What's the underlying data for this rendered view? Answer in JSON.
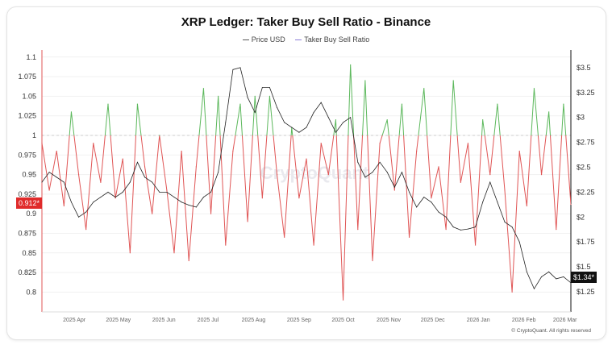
{
  "chart_data": {
    "type": "line",
    "title": "XRP Ledger: Taker Buy Sell Ratio - Binance",
    "legend": [
      "Price USD",
      "Taker Buy Sell Ratio"
    ],
    "legend_position": "top",
    "x": [
      "2025-03-10",
      "2025-03-15",
      "2025-03-20",
      "2025-03-25",
      "2025-03-30",
      "2025-04-04",
      "2025-04-09",
      "2025-04-14",
      "2025-04-19",
      "2025-04-24",
      "2025-04-29",
      "2025-05-04",
      "2025-05-09",
      "2025-05-14",
      "2025-05-19",
      "2025-05-24",
      "2025-05-29",
      "2025-06-03",
      "2025-06-08",
      "2025-06-13",
      "2025-06-18",
      "2025-06-23",
      "2025-06-28",
      "2025-07-03",
      "2025-07-08",
      "2025-07-13",
      "2025-07-18",
      "2025-07-23",
      "2025-07-28",
      "2025-08-02",
      "2025-08-07",
      "2025-08-12",
      "2025-08-17",
      "2025-08-22",
      "2025-08-27",
      "2025-09-01",
      "2025-09-06",
      "2025-09-11",
      "2025-09-16",
      "2025-09-21",
      "2025-09-26",
      "2025-10-01",
      "2025-10-06",
      "2025-10-11",
      "2025-10-16",
      "2025-10-21",
      "2025-10-26",
      "2025-10-31",
      "2025-11-05",
      "2025-11-10",
      "2025-11-15",
      "2025-11-20",
      "2025-11-25",
      "2025-11-30",
      "2025-12-05",
      "2025-12-10",
      "2025-12-15",
      "2025-12-20",
      "2025-12-25",
      "2025-12-30",
      "2026-01-04",
      "2026-01-09",
      "2026-01-14",
      "2026-01-19",
      "2026-01-24",
      "2026-01-29",
      "2026-02-03",
      "2026-02-08",
      "2026-02-13",
      "2026-02-18",
      "2026-02-23",
      "2026-02-28",
      "2026-03-05"
    ],
    "series": [
      {
        "name": "Taker Buy Sell Ratio",
        "axis": "left",
        "color_above_1": "#5cb85c",
        "color_below_1": "#e05555",
        "values": [
          0.99,
          0.93,
          0.98,
          0.91,
          1.03,
          0.95,
          0.88,
          0.99,
          0.94,
          1.04,
          0.92,
          0.97,
          0.85,
          1.04,
          0.96,
          0.9,
          1.0,
          0.93,
          0.85,
          0.98,
          0.84,
          0.96,
          1.06,
          0.9,
          1.05,
          0.86,
          0.98,
          1.04,
          0.89,
          1.05,
          0.92,
          1.05,
          0.95,
          0.87,
          1.01,
          0.92,
          0.97,
          0.86,
          0.99,
          0.95,
          1.02,
          0.79,
          1.09,
          0.88,
          1.07,
          0.84,
          0.99,
          1.02,
          0.93,
          1.04,
          0.87,
          0.98,
          1.06,
          0.92,
          0.96,
          0.88,
          1.07,
          0.94,
          0.99,
          0.86,
          1.02,
          0.95,
          1.04,
          0.93,
          0.8,
          0.98,
          0.91,
          1.06,
          0.95,
          1.03,
          0.88,
          1.04,
          0.912
        ]
      },
      {
        "name": "Price USD",
        "axis": "right",
        "color": "#222222",
        "values": [
          2.35,
          2.45,
          2.4,
          2.35,
          2.15,
          2.0,
          2.05,
          2.15,
          2.2,
          2.25,
          2.2,
          2.25,
          2.35,
          2.55,
          2.4,
          2.35,
          2.25,
          2.25,
          2.2,
          2.15,
          2.12,
          2.1,
          2.2,
          2.25,
          2.45,
          2.95,
          3.48,
          3.5,
          3.2,
          3.05,
          3.3,
          3.3,
          3.1,
          2.95,
          2.9,
          2.85,
          2.9,
          3.05,
          3.15,
          3.0,
          2.85,
          2.95,
          3.0,
          2.55,
          2.4,
          2.45,
          2.55,
          2.45,
          2.3,
          2.45,
          2.25,
          2.1,
          2.2,
          2.15,
          2.05,
          2.0,
          1.9,
          1.87,
          1.88,
          1.9,
          2.15,
          2.35,
          2.15,
          1.95,
          1.9,
          1.75,
          1.45,
          1.28,
          1.4,
          1.45,
          1.38,
          1.4,
          1.34
        ]
      }
    ],
    "y_left": {
      "ticks": [
        "1.1",
        "1.075",
        "1.05",
        "1.025",
        "1",
        "0.975",
        "0.95",
        "0.925",
        "0.9",
        "0.875",
        "0.85",
        "0.825",
        "0.8"
      ],
      "range": [
        0.775,
        1.105
      ],
      "reference_line": 1
    },
    "y_right": {
      "ticks": [
        "$3.5",
        "$3.25",
        "$3",
        "$2.75",
        "$2.5",
        "$2.25",
        "$2",
        "$1.75",
        "$1.5",
        "$1.25"
      ],
      "range": [
        1.05,
        3.7
      ]
    },
    "x_ticks": [
      {
        "label": "2025 Apr",
        "date": "2025-04-01"
      },
      {
        "label": "2025 May",
        "date": "2025-05-01"
      },
      {
        "label": "2025 Jun",
        "date": "2025-06-01"
      },
      {
        "label": "2025 Jul",
        "date": "2025-07-01"
      },
      {
        "label": "2025 Aug",
        "date": "2025-08-01"
      },
      {
        "label": "2025 Sep",
        "date": "2025-09-01"
      },
      {
        "label": "2025 Oct",
        "date": "2025-10-01"
      },
      {
        "label": "2025 Nov",
        "date": "2025-11-01"
      },
      {
        "label": "2025 Dec",
        "date": "2025-12-01"
      },
      {
        "label": "2026 Jan",
        "date": "2026-01-01"
      },
      {
        "label": "2026 Feb",
        "date": "2026-02-01"
      },
      {
        "label": "2026 Mar",
        "date": "2026-03-01"
      }
    ],
    "grid": true,
    "last_value_left": "0.912*",
    "last_value_right": "$1.34*",
    "watermark": "CryptoQuant"
  },
  "footer": {
    "copyright": "© CryptoQuant. All rights reserved"
  },
  "colors": {
    "ratio_axis": "#e05555",
    "badge_left": "#e02b2b",
    "badge_right": "#111111"
  }
}
